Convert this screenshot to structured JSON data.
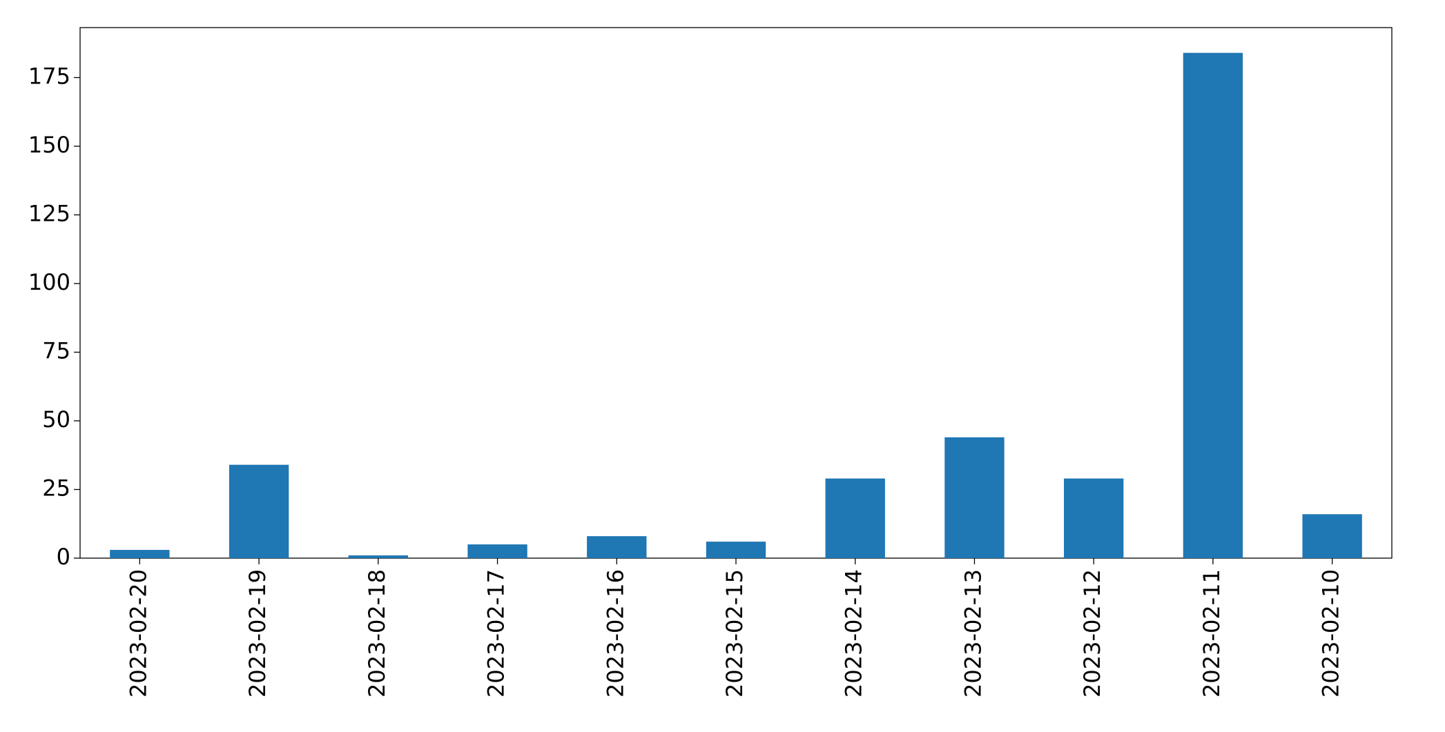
{
  "chart_data": {
    "type": "bar",
    "categories": [
      "2023-02-20",
      "2023-02-19",
      "2023-02-18",
      "2023-02-17",
      "2023-02-16",
      "2023-02-15",
      "2023-02-14",
      "2023-02-13",
      "2023-02-12",
      "2023-02-11",
      "2023-02-10"
    ],
    "values": [
      3,
      34,
      1,
      5,
      8,
      6,
      29,
      44,
      29,
      184,
      16
    ],
    "color": "#1f77b4",
    "ylim": [
      0,
      193.2
    ],
    "yticks": [
      0,
      25,
      50,
      75,
      100,
      125,
      150,
      175
    ],
    "grid": false
  }
}
